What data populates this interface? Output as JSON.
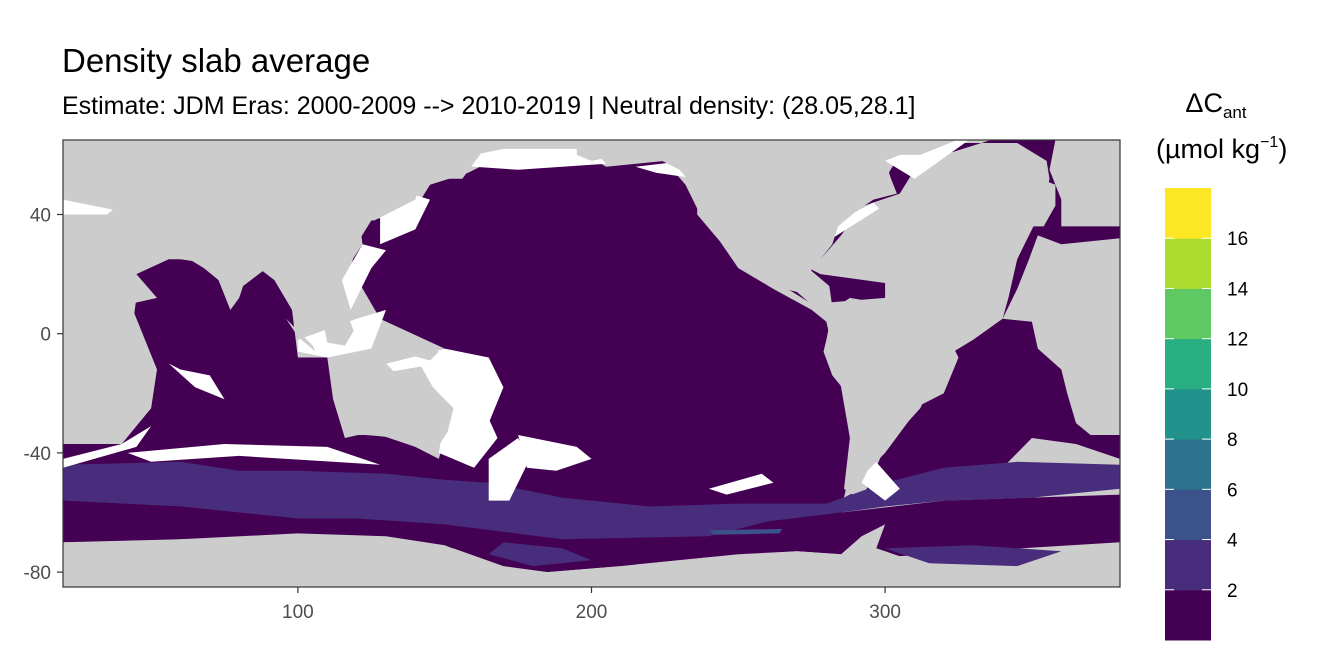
{
  "title": "Density slab average",
  "subtitle": "Estimate: JDM Eras: 2000-2009 --> 2010-2019 | Neutral density: (28.05,28.1]",
  "colors": {
    "land": "#cccccc",
    "nodata": "#ffffff",
    "scale": [
      "#440154",
      "#472d7b",
      "#3b528b",
      "#2c728e",
      "#21918c",
      "#28ae80",
      "#5ec962",
      "#addc30",
      "#fde725"
    ]
  },
  "chart_data": {
    "type": "heatmap",
    "title": "Density slab average",
    "subtitle": "Estimate: JDM Eras: 2000-2009 --> 2010-2019 | Neutral density: (28.05,28.1]",
    "xlabel": "",
    "ylabel": "",
    "xlim": [
      20,
      380
    ],
    "ylim": [
      -85,
      65
    ],
    "x_ticks": [
      "100",
      "200",
      "300"
    ],
    "x_tick_values": [
      100,
      200,
      300
    ],
    "y_ticks": [
      "40",
      "0",
      "-40",
      "-80"
    ],
    "y_tick_values": [
      40,
      0,
      -40,
      -80
    ],
    "grid": false,
    "legend": {
      "title_prefix": "ΔC",
      "title_sub": "ant",
      "unit_open": "(µmol kg",
      "unit_sup": "−1",
      "unit_close": ")",
      "placement": "right",
      "breaks": [
        "2",
        "4",
        "6",
        "8",
        "10",
        "12",
        "14",
        "16"
      ],
      "bins": [
        [
          0,
          2
        ],
        [
          2,
          4
        ],
        [
          4,
          6
        ],
        [
          6,
          8
        ],
        [
          8,
          10
        ],
        [
          10,
          12
        ],
        [
          12,
          14
        ],
        [
          14,
          16
        ],
        [
          16,
          18
        ]
      ]
    },
    "description": "Global ocean map; nearly all ocean cells fall in the 0-2 bin, Southern Ocean band near -45 to -70 latitude in the 2-4 bin, a small patch near 240-260 E, -65 in the 4-6 bin."
  }
}
